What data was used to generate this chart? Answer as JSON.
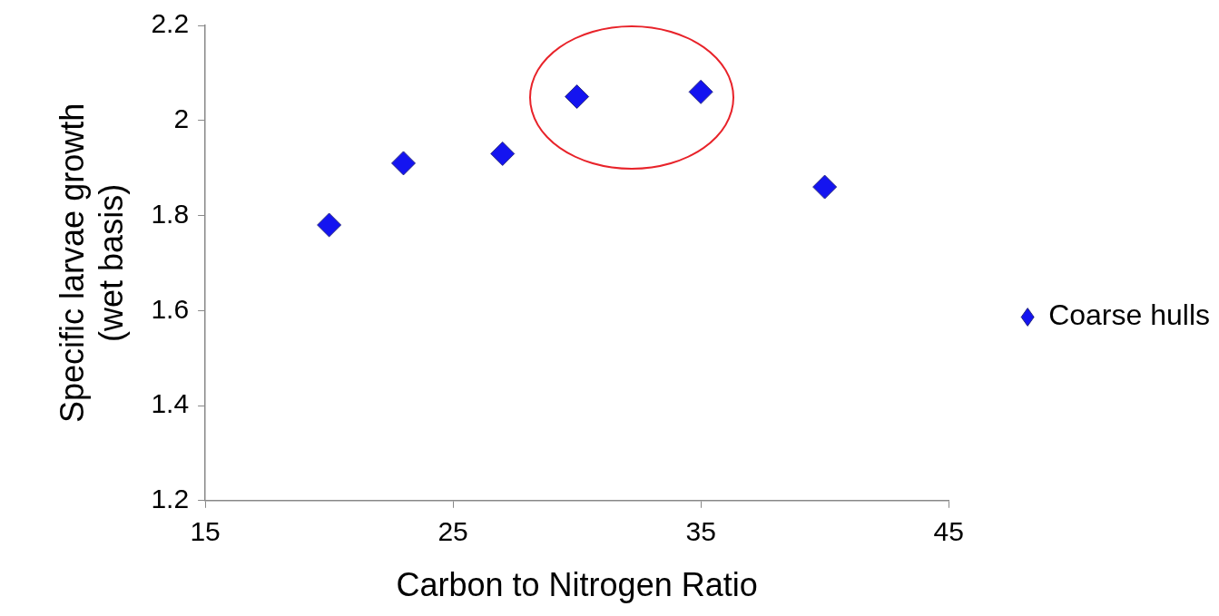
{
  "chart_data": {
    "type": "scatter",
    "xlabel": "Carbon to Nitrogen Ratio",
    "ylabel": "Specific larvae growth\n(wet basis)",
    "xlim": [
      15,
      45
    ],
    "xticks": [
      15,
      25,
      35,
      45
    ],
    "ylim": [
      1.2,
      2.2
    ],
    "yticks": [
      1.2,
      1.4,
      1.6,
      1.8,
      2,
      2.2
    ],
    "grid": false,
    "legend": "right",
    "marker": "diamond",
    "series": [
      {
        "name": "Coarse hulls",
        "color": "#1414f0",
        "x": [
          20,
          23,
          27,
          30,
          35,
          40
        ],
        "values": [
          1.78,
          1.91,
          1.93,
          2.05,
          2.06,
          1.86
        ]
      }
    ]
  }
}
